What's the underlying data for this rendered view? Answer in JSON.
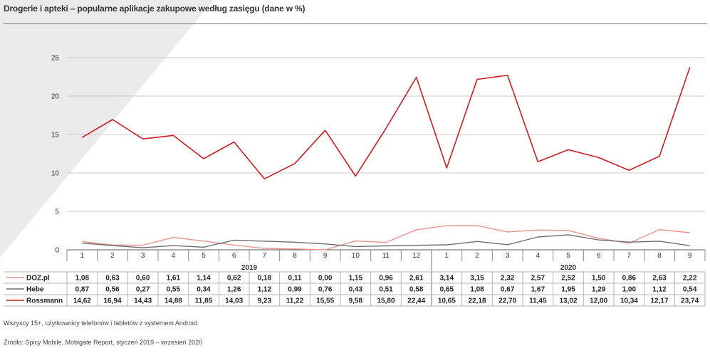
{
  "title": "Drogerie i apteki – popularne aplikacje zakupowe według zasięgu (dane w %)",
  "notes": {
    "sample": "Wszyscy 15+, użytkownicy telefonów i tabletów z systemem Android.",
    "source": "Źródło: Spicy Mobile, Mobigate Report, styczeń 2019 – wrzesień 2020"
  },
  "chart_data": {
    "type": "line",
    "title": "Drogerie i apteki – popularne aplikacje zakupowe według zasięgu (dane w %)",
    "categories": [
      "1",
      "2",
      "3",
      "4",
      "5",
      "6",
      "7",
      "8",
      "9",
      "10",
      "11",
      "12",
      "1",
      "2",
      "3",
      "4",
      "5",
      "6",
      "7",
      "8",
      "9"
    ],
    "year_groups": [
      {
        "label": "2019",
        "start": 0,
        "end": 11
      },
      {
        "label": "2020",
        "start": 12,
        "end": 20
      }
    ],
    "yticks": [
      0,
      5,
      10,
      15,
      20,
      25
    ],
    "ylim": [
      0,
      25
    ],
    "grid": true,
    "legend": "table-left",
    "series": [
      {
        "name": "DOZ.pl",
        "color": "#e8948c",
        "values": [
          1.08,
          0.63,
          0.6,
          1.61,
          1.14,
          0.62,
          0.18,
          0.11,
          0.0,
          1.15,
          0.96,
          2.61,
          3.14,
          3.15,
          2.32,
          2.57,
          2.52,
          1.5,
          0.86,
          2.63,
          2.22
        ],
        "labels": [
          "1,08",
          "0,63",
          "0,60",
          "1,61",
          "1,14",
          "0,62",
          "0,18",
          "0,11",
          "0,00",
          "1,15",
          "0,96",
          "2,61",
          "3,14",
          "3,15",
          "2,32",
          "2,57",
          "2,52",
          "1,50",
          "0,86",
          "2,63",
          "2,22"
        ]
      },
      {
        "name": "Hebe",
        "color": "#6f6f6f",
        "values": [
          0.87,
          0.56,
          0.27,
          0.55,
          0.34,
          1.26,
          1.12,
          0.99,
          0.76,
          0.43,
          0.51,
          0.58,
          0.65,
          1.08,
          0.67,
          1.67,
          1.95,
          1.29,
          1.0,
          1.12,
          0.54
        ],
        "labels": [
          "0,87",
          "0,56",
          "0,27",
          "0,55",
          "0,34",
          "1,26",
          "1,12",
          "0,99",
          "0,76",
          "0,43",
          "0,51",
          "0,58",
          "0,65",
          "1,08",
          "0,67",
          "1,67",
          "1,95",
          "1,29",
          "1,00",
          "1,12",
          "0,54"
        ]
      },
      {
        "name": "Rossmann",
        "color": "#cc1e23",
        "values": [
          14.62,
          16.94,
          14.43,
          14.88,
          11.85,
          14.03,
          9.23,
          11.22,
          15.55,
          9.58,
          15.8,
          22.44,
          10.65,
          22.18,
          22.7,
          11.45,
          13.02,
          12.0,
          10.34,
          12.17,
          23.74
        ],
        "labels": [
          "14,62",
          "16,94",
          "14,43",
          "14,88",
          "11,85",
          "14,03",
          "9,23",
          "11,22",
          "15,55",
          "9,58",
          "15,80",
          "22,44",
          "10,65",
          "22,18",
          "22,70",
          "11,45",
          "13,02",
          "12,00",
          "10,34",
          "12,17",
          "23,74"
        ]
      }
    ]
  }
}
